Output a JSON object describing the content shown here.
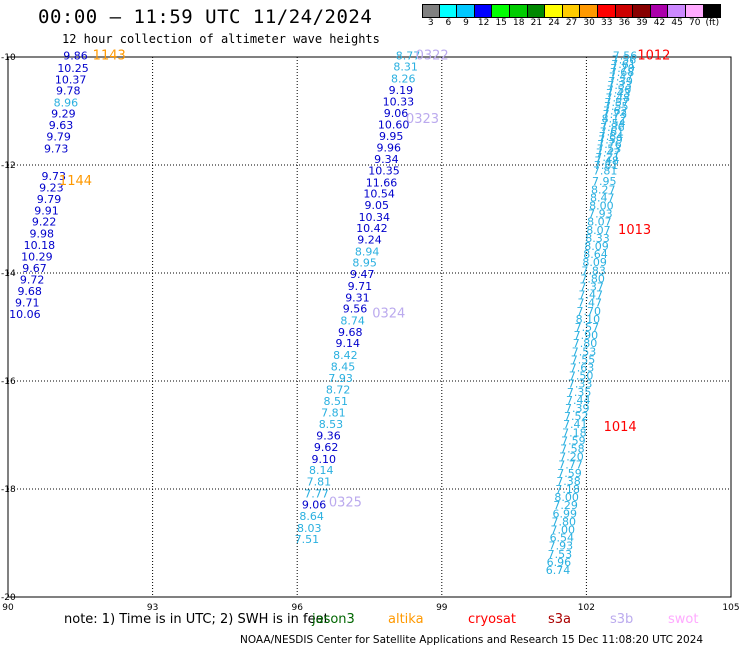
{
  "header": {
    "title": "00:00 — 11:59 UTC 11/24/2024",
    "subtitle": "12 hour collection of altimeter wave heights"
  },
  "legend": {
    "colors": [
      "#808080",
      "#00ffff",
      "#00c8ff",
      "#0000ff",
      "#00ff00",
      "#00cc00",
      "#008800",
      "#ffff00",
      "#ffcc00",
      "#ff9900",
      "#ff0000",
      "#cc0000",
      "#880000",
      "#aa00aa",
      "#cc88ff",
      "#ffaaff",
      "#000000"
    ],
    "labels": [
      "3",
      "6",
      "9",
      "12",
      "15",
      "18",
      "21",
      "24",
      "27",
      "30",
      "33",
      "36",
      "39",
      "42",
      "45",
      "70",
      "(ft)"
    ]
  },
  "footer": {
    "note": "note:  1) Time is in UTC; 2) SWH is in feet",
    "satellites": [
      {
        "name": "jason3",
        "color": "#006600"
      },
      {
        "name": "altika",
        "color": "#ff9900"
      },
      {
        "name": "cryosat",
        "color": "#ff0000"
      },
      {
        "name": "s3a",
        "color": "#aa0000"
      },
      {
        "name": "s3b",
        "color": "#bbaaee"
      },
      {
        "name": "swot",
        "color": "#ffaaff"
      }
    ],
    "credit": "NOAA/NESDIS Center for Satellite Applications and Research    15 Dec 11:08:20 UTC 2024"
  },
  "chart_data": {
    "type": "scatter",
    "x_range": [
      90,
      105
    ],
    "y_range": [
      -20,
      -10
    ],
    "x_ticks": [
      "90",
      "93",
      "96",
      "99",
      "102",
      "105"
    ],
    "y_ticks": [
      "-10",
      "-12",
      "-14",
      "-16",
      "-18",
      "-20"
    ],
    "grid": true,
    "annotations": [
      {
        "text": "1143",
        "x": 92.1,
        "y": -9.97,
        "color": "#ff9900"
      },
      {
        "text": "1144",
        "x": 91.4,
        "y": -12.3,
        "color": "#ff9900"
      },
      {
        "text": "0322",
        "x": 98.8,
        "y": -9.97,
        "color": "#bbaaee"
      },
      {
        "text": "0323",
        "x": 98.6,
        "y": -11.15,
        "color": "#bbaaee"
      },
      {
        "text": "0324",
        "x": 97.9,
        "y": -14.75,
        "color": "#bbaaee"
      },
      {
        "text": "0325",
        "x": 97.0,
        "y": -18.25,
        "color": "#bbaaee"
      },
      {
        "text": "1012",
        "x": 103.4,
        "y": -9.97,
        "color": "#ff0000"
      },
      {
        "text": "1013",
        "x": 103.0,
        "y": -13.2,
        "color": "#ff0000"
      },
      {
        "text": "1014",
        "x": 102.7,
        "y": -16.85,
        "color": "#ff0000"
      }
    ],
    "series": [
      {
        "name": "altika",
        "points": [
          {
            "x": 91.4,
            "y": -9.97,
            "label": "9.86"
          },
          {
            "x": 91.35,
            "y": -10.2,
            "label": "10.25"
          },
          {
            "x": 91.3,
            "y": -10.42,
            "label": "10.37"
          },
          {
            "x": 91.25,
            "y": -10.62,
            "label": "9.78"
          },
          {
            "x": 91.2,
            "y": -10.84,
            "label": "8.96"
          },
          {
            "x": 91.15,
            "y": -11.05,
            "label": "9.29"
          },
          {
            "x": 91.1,
            "y": -11.26,
            "label": "9.63"
          },
          {
            "x": 91.05,
            "y": -11.47,
            "label": "9.79"
          },
          {
            "x": 91.0,
            "y": -11.69,
            "label": "9.73"
          },
          {
            "x": 90.95,
            "y": -12.2,
            "label": "9.73"
          },
          {
            "x": 90.9,
            "y": -12.42,
            "label": "9.23"
          },
          {
            "x": 90.85,
            "y": -12.63,
            "label": "9.79"
          },
          {
            "x": 90.8,
            "y": -12.84,
            "label": "9.91"
          },
          {
            "x": 90.75,
            "y": -13.05,
            "label": "9.22"
          },
          {
            "x": 90.7,
            "y": -13.27,
            "label": "9.98"
          },
          {
            "x": 90.65,
            "y": -13.48,
            "label": "10.18"
          },
          {
            "x": 90.6,
            "y": -13.69,
            "label": "10.29"
          },
          {
            "x": 90.55,
            "y": -13.91,
            "label": "9.67"
          },
          {
            "x": 90.5,
            "y": -14.12,
            "label": "9.72"
          },
          {
            "x": 90.45,
            "y": -14.33,
            "label": "9.68"
          },
          {
            "x": 90.4,
            "y": -14.55,
            "label": "9.71"
          },
          {
            "x": 90.35,
            "y": -14.76,
            "label": "10.06"
          }
        ]
      },
      {
        "name": "s3b",
        "points": [
          {
            "x": 98.3,
            "y": -9.97,
            "label": "8.77"
          },
          {
            "x": 98.25,
            "y": -10.18,
            "label": "8.31"
          },
          {
            "x": 98.2,
            "y": -10.4,
            "label": "8.26"
          },
          {
            "x": 98.15,
            "y": -10.61,
            "label": "9.19"
          },
          {
            "x": 98.1,
            "y": -10.82,
            "label": "10.33"
          },
          {
            "x": 98.05,
            "y": -11.04,
            "label": "9.06"
          },
          {
            "x": 98.0,
            "y": -11.25,
            "label": "10.60"
          },
          {
            "x": 97.95,
            "y": -11.46,
            "label": "9.95"
          },
          {
            "x": 97.9,
            "y": -11.68,
            "label": "9.96"
          },
          {
            "x": 97.85,
            "y": -11.89,
            "label": "9.34"
          },
          {
            "x": 97.8,
            "y": -12.1,
            "label": "10.35"
          },
          {
            "x": 97.75,
            "y": -12.32,
            "label": "11.66"
          },
          {
            "x": 97.7,
            "y": -12.53,
            "label": "10.54"
          },
          {
            "x": 97.65,
            "y": -12.74,
            "label": "9.05"
          },
          {
            "x": 97.6,
            "y": -12.96,
            "label": "10.34"
          },
          {
            "x": 97.55,
            "y": -13.17,
            "label": "10.42"
          },
          {
            "x": 97.5,
            "y": -13.38,
            "label": "9.24"
          },
          {
            "x": 97.45,
            "y": -13.6,
            "label": "8.94"
          },
          {
            "x": 97.4,
            "y": -13.81,
            "label": "8.95"
          },
          {
            "x": 97.35,
            "y": -14.02,
            "label": "9.47"
          },
          {
            "x": 97.3,
            "y": -14.24,
            "label": "9.71"
          },
          {
            "x": 97.25,
            "y": -14.45,
            "label": "9.31"
          },
          {
            "x": 97.2,
            "y": -14.66,
            "label": "9.56"
          },
          {
            "x": 97.15,
            "y": -14.88,
            "label": "8.74"
          },
          {
            "x": 97.1,
            "y": -15.09,
            "label": "9.68"
          },
          {
            "x": 97.05,
            "y": -15.3,
            "label": "9.14"
          },
          {
            "x": 97.0,
            "y": -15.52,
            "label": "8.42"
          },
          {
            "x": 96.95,
            "y": -15.73,
            "label": "8.45"
          },
          {
            "x": 96.9,
            "y": -15.94,
            "label": "7.93"
          },
          {
            "x": 96.85,
            "y": -16.16,
            "label": "8.72"
          },
          {
            "x": 96.8,
            "y": -16.37,
            "label": "8.51"
          },
          {
            "x": 96.75,
            "y": -16.58,
            "label": "7.81"
          },
          {
            "x": 96.7,
            "y": -16.8,
            "label": "8.53"
          },
          {
            "x": 96.65,
            "y": -17.01,
            "label": "9.36"
          },
          {
            "x": 96.6,
            "y": -17.22,
            "label": "9.62"
          },
          {
            "x": 96.55,
            "y": -17.44,
            "label": "9.10"
          },
          {
            "x": 96.5,
            "y": -17.65,
            "label": "8.14"
          },
          {
            "x": 96.45,
            "y": -17.86,
            "label": "7.81"
          },
          {
            "x": 96.4,
            "y": -18.08,
            "label": "7.77"
          },
          {
            "x": 96.35,
            "y": -18.29,
            "label": "9.06"
          },
          {
            "x": 96.3,
            "y": -18.5,
            "label": "8.64"
          },
          {
            "x": 96.25,
            "y": -18.72,
            "label": "8.03"
          },
          {
            "x": 96.2,
            "y": -18.93,
            "label": "7.51"
          }
        ]
      },
      {
        "name": "cryosat",
        "points": [
          {
            "x": 102.8,
            "y": -9.97,
            "label": "7.56"
          },
          {
            "x": 102.78,
            "y": -10.05,
            "label": "7.56"
          },
          {
            "x": 102.77,
            "y": -10.13,
            "label": "7.61"
          },
          {
            "x": 102.75,
            "y": -10.2,
            "label": "7.70"
          },
          {
            "x": 102.74,
            "y": -10.28,
            "label": "7.68"
          },
          {
            "x": 102.72,
            "y": -10.36,
            "label": "7.47"
          },
          {
            "x": 102.71,
            "y": -10.44,
            "label": "7.39"
          },
          {
            "x": 102.69,
            "y": -10.52,
            "label": "7.33"
          },
          {
            "x": 102.68,
            "y": -10.6,
            "label": "7.50"
          },
          {
            "x": 102.66,
            "y": -10.67,
            "label": "7.43"
          },
          {
            "x": 102.65,
            "y": -10.75,
            "label": "7.48"
          },
          {
            "x": 102.63,
            "y": -10.83,
            "label": "7.57"
          },
          {
            "x": 102.62,
            "y": -10.91,
            "label": "7.55"
          },
          {
            "x": 102.6,
            "y": -10.99,
            "label": "7.62"
          },
          {
            "x": 102.59,
            "y": -11.06,
            "label": "7.73"
          },
          {
            "x": 102.57,
            "y": -11.14,
            "label": "8.12"
          },
          {
            "x": 102.56,
            "y": -11.22,
            "label": "7.54"
          },
          {
            "x": 102.54,
            "y": -11.3,
            "label": "7.86"
          },
          {
            "x": 102.53,
            "y": -11.38,
            "label": "7.61"
          },
          {
            "x": 102.51,
            "y": -11.46,
            "label": "7.84"
          },
          {
            "x": 102.5,
            "y": -11.53,
            "label": "7.59"
          },
          {
            "x": 102.48,
            "y": -11.61,
            "label": "7.76"
          },
          {
            "x": 102.47,
            "y": -11.69,
            "label": "7.53"
          },
          {
            "x": 102.45,
            "y": -11.77,
            "label": "7.47"
          },
          {
            "x": 102.44,
            "y": -11.85,
            "label": "7.21"
          },
          {
            "x": 102.42,
            "y": -11.92,
            "label": "7.48"
          },
          {
            "x": 102.41,
            "y": -12.0,
            "label": "7.61"
          },
          {
            "x": 102.39,
            "y": -12.1,
            "label": "7.81"
          },
          {
            "x": 102.37,
            "y": -12.3,
            "label": "7.95"
          },
          {
            "x": 102.35,
            "y": -12.45,
            "label": "8.27"
          },
          {
            "x": 102.33,
            "y": -12.6,
            "label": "8.47"
          },
          {
            "x": 102.31,
            "y": -12.75,
            "label": "8.00"
          },
          {
            "x": 102.29,
            "y": -12.9,
            "label": "7.93"
          },
          {
            "x": 102.27,
            "y": -13.05,
            "label": "8.07"
          },
          {
            "x": 102.25,
            "y": -13.2,
            "label": "8.07"
          },
          {
            "x": 102.23,
            "y": -13.35,
            "label": "8.33"
          },
          {
            "x": 102.21,
            "y": -13.5,
            "label": "8.09"
          },
          {
            "x": 102.19,
            "y": -13.65,
            "label": "8.64"
          },
          {
            "x": 102.17,
            "y": -13.8,
            "label": "8.09"
          },
          {
            "x": 102.15,
            "y": -13.95,
            "label": "7.83"
          },
          {
            "x": 102.13,
            "y": -14.1,
            "label": "7.80"
          },
          {
            "x": 102.11,
            "y": -14.25,
            "label": "7.37"
          },
          {
            "x": 102.09,
            "y": -14.4,
            "label": "7.47"
          },
          {
            "x": 102.07,
            "y": -14.55,
            "label": "7.47"
          },
          {
            "x": 102.05,
            "y": -14.7,
            "label": "7.70"
          },
          {
            "x": 102.03,
            "y": -14.85,
            "label": "8.10"
          },
          {
            "x": 102.01,
            "y": -15.0,
            "label": "7.57"
          },
          {
            "x": 101.99,
            "y": -15.15,
            "label": "7.90"
          },
          {
            "x": 101.97,
            "y": -15.3,
            "label": "7.80"
          },
          {
            "x": 101.95,
            "y": -15.45,
            "label": "7.53"
          },
          {
            "x": 101.93,
            "y": -15.6,
            "label": "7.55"
          },
          {
            "x": 101.91,
            "y": -15.75,
            "label": "7.63"
          },
          {
            "x": 101.89,
            "y": -15.9,
            "label": "7.50"
          },
          {
            "x": 101.87,
            "y": -16.05,
            "label": "7.33"
          },
          {
            "x": 101.85,
            "y": -16.2,
            "label": "7.35"
          },
          {
            "x": 101.83,
            "y": -16.35,
            "label": "7.44"
          },
          {
            "x": 101.81,
            "y": -16.5,
            "label": "7.39"
          },
          {
            "x": 101.79,
            "y": -16.65,
            "label": "7.52"
          },
          {
            "x": 101.77,
            "y": -16.8,
            "label": "7.41"
          },
          {
            "x": 101.75,
            "y": -16.95,
            "label": "7.18"
          },
          {
            "x": 101.73,
            "y": -17.1,
            "label": "7.59"
          },
          {
            "x": 101.71,
            "y": -17.25,
            "label": "7.58"
          },
          {
            "x": 101.69,
            "y": -17.4,
            "label": "7.20"
          },
          {
            "x": 101.67,
            "y": -17.55,
            "label": "7.77"
          },
          {
            "x": 101.65,
            "y": -17.7,
            "label": "7.59"
          },
          {
            "x": 101.63,
            "y": -17.85,
            "label": "7.38"
          },
          {
            "x": 101.61,
            "y": -18.0,
            "label": "7.18"
          },
          {
            "x": 101.59,
            "y": -18.15,
            "label": "8.00"
          },
          {
            "x": 101.57,
            "y": -18.3,
            "label": "7.29"
          },
          {
            "x": 101.55,
            "y": -18.45,
            "label": "6.99"
          },
          {
            "x": 101.53,
            "y": -18.6,
            "label": "7.80"
          },
          {
            "x": 101.51,
            "y": -18.75,
            "label": "7.00"
          },
          {
            "x": 101.49,
            "y": -18.9,
            "label": "6.54"
          },
          {
            "x": 101.47,
            "y": -19.05,
            "label": "7.93"
          },
          {
            "x": 101.45,
            "y": -19.2,
            "label": "7.53"
          },
          {
            "x": 101.43,
            "y": -19.35,
            "label": "6.96"
          },
          {
            "x": 101.41,
            "y": -19.5,
            "label": "6.74"
          }
        ]
      }
    ]
  }
}
